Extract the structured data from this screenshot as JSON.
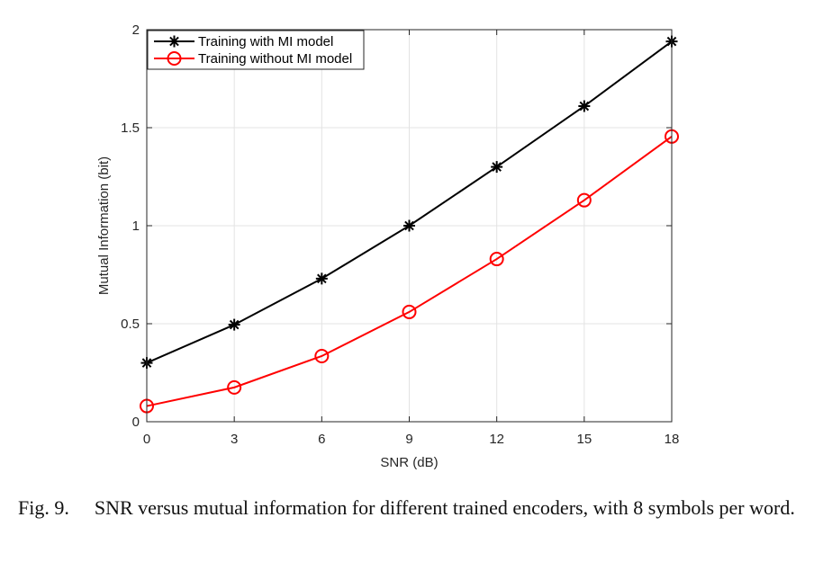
{
  "chart_data": {
    "type": "line",
    "title": "",
    "xlabel": "SNR (dB)",
    "ylabel": "Mutual Information (bit)",
    "x": [
      0,
      3,
      6,
      9,
      12,
      15,
      18
    ],
    "xlim": [
      0,
      18
    ],
    "ylim": [
      0,
      2
    ],
    "xticks": [
      "0",
      "3",
      "6",
      "9",
      "12",
      "15",
      "18"
    ],
    "yticks": [
      "0",
      "0.5",
      "1",
      "1.5",
      "2"
    ],
    "grid": true,
    "legend_position": "top-left",
    "series": [
      {
        "name": "Training with MI model",
        "values": [
          0.3,
          0.495,
          0.73,
          1.0,
          1.3,
          1.61,
          1.94
        ],
        "color": "#000000",
        "marker": "asterisk"
      },
      {
        "name": "Training without MI model",
        "values": [
          0.08,
          0.175,
          0.335,
          0.56,
          0.83,
          1.13,
          1.455
        ],
        "color": "#ff0000",
        "marker": "circle"
      }
    ]
  },
  "caption": {
    "label": "Fig. 9.",
    "text": "SNR versus mutual information for different trained encoders, with 8 symbols per word."
  }
}
